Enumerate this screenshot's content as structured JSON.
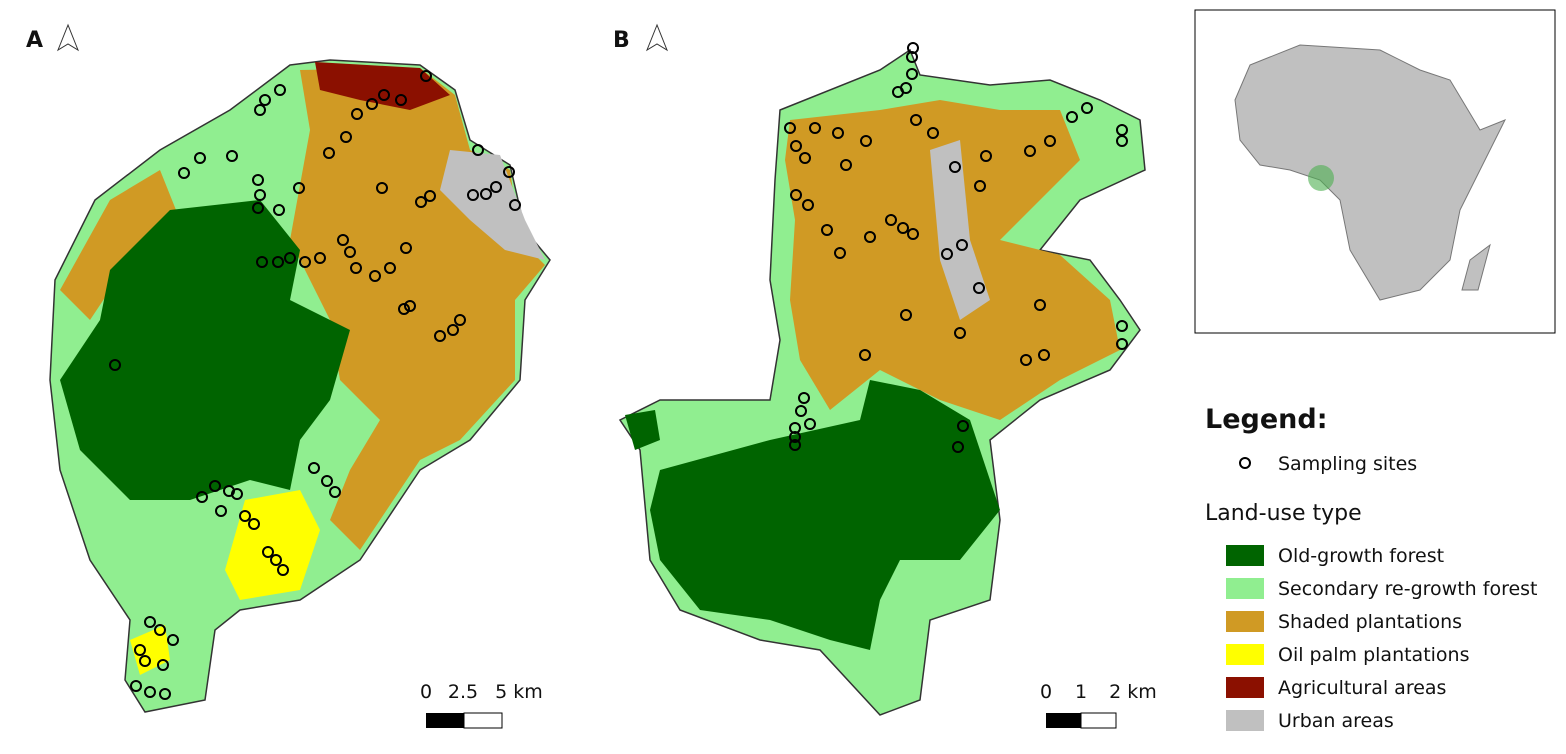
{
  "panels": [
    {
      "label": "A",
      "scale": [
        "0",
        "2.5",
        "5 km"
      ]
    },
    {
      "label": "B",
      "scale": [
        "0",
        "1",
        "2 km"
      ]
    }
  ],
  "legend": {
    "title": "Legend:",
    "sites": "Sampling sites",
    "landuse_title": "Land-use type",
    "items": [
      {
        "name": "Old-growth forest",
        "color": "#006400"
      },
      {
        "name": "Secondary re-growth forest",
        "color": "#90ee90"
      },
      {
        "name": "Shaded plantations",
        "color": "#d09a24"
      },
      {
        "name": "Oil palm plantations",
        "color": "#ffff00"
      },
      {
        "name": "Agricultural areas",
        "color": "#8b1000"
      },
      {
        "name": "Urban areas",
        "color": "#c0c0c0"
      }
    ]
  }
}
